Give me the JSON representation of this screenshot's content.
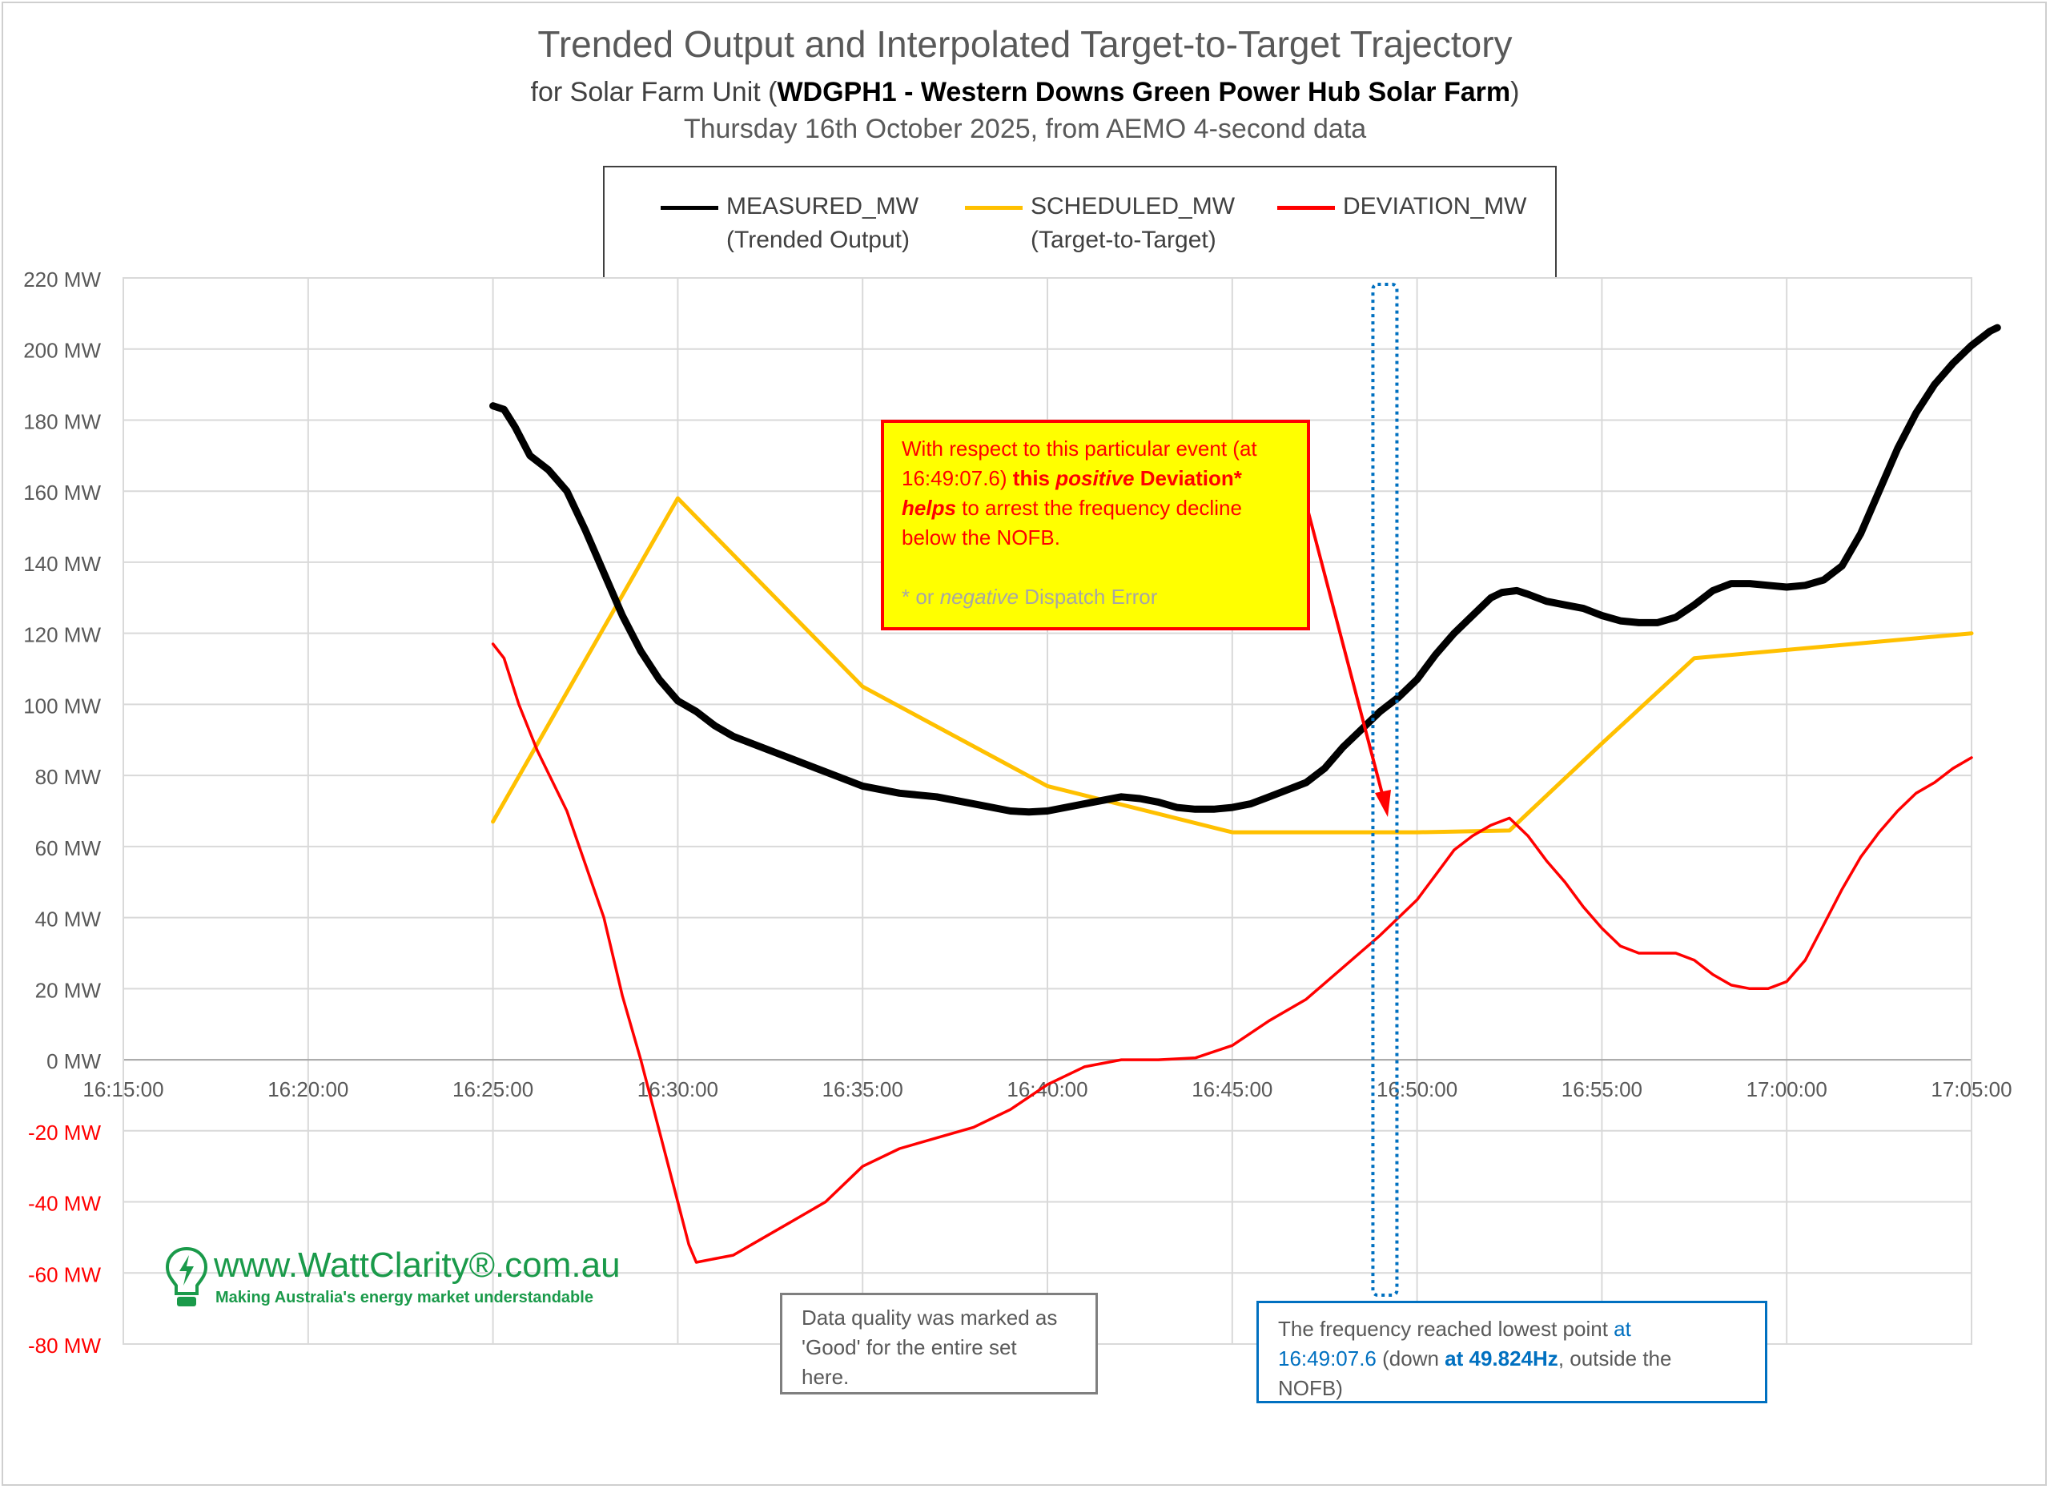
{
  "header": {
    "title": "Trended Output and Interpolated Target-to-Target Trajectory",
    "subtitle_prefix": "for Solar Farm Unit (",
    "subtitle_unit": "WDGPH1 - Western Downs Green Power Hub Solar Farm",
    "subtitle_suffix": ")",
    "date_line": "Thursday 16th October 2025, from AEMO 4-second data"
  },
  "legend": {
    "items": [
      {
        "name": "MEASURED_MW",
        "sub": "(Trended Output)",
        "color": "#000000"
      },
      {
        "name": "SCHEDULED_MW",
        "sub": "(Target-to-Target)",
        "color": "#ffc000"
      },
      {
        "name": "DEVIATION_MW",
        "sub": "",
        "color": "#ff0000"
      }
    ]
  },
  "annotations": {
    "yellow": {
      "l1": "With respect to this particular event (at",
      "l2a": "16:49:07.6) ",
      "l2b": "this ",
      "l2c": "positive",
      "l2d": " Deviation*",
      "l3a": "helps",
      "l3b": " to arrest the frequency decline",
      "l4": "below the NOFB.",
      "f1": "* or ",
      "f2": "negative",
      "f3": " Dispatch Error"
    },
    "grey": {
      "l1": "Data quality was marked as",
      "l2": "'Good' for the entire set",
      "l3": "here."
    },
    "blue": {
      "a1": "The frequency reached lowest point ",
      "a2": "at",
      "b1": "16:49:07.6",
      "b2": " (down ",
      "b3": "at 49.824Hz",
      "b4": ", outside the",
      "c1": "NOFB)"
    }
  },
  "logo": {
    "text": "www.WattClarity®.com.au",
    "tagline": "Making Australia's energy market understandable"
  },
  "chart_data": {
    "type": "line",
    "x_ticks": [
      "16:15:00",
      "16:20:00",
      "16:25:00",
      "16:30:00",
      "16:35:00",
      "16:40:00",
      "16:45:00",
      "16:50:00",
      "16:55:00",
      "17:00:00",
      "17:05:00"
    ],
    "y_ticks": [
      "220 MW",
      "200 MW",
      "180 MW",
      "160 MW",
      "140 MW",
      "120 MW",
      "100 MW",
      "80 MW",
      "60 MW",
      "40 MW",
      "20 MW",
      "0 MW",
      "-20 MW",
      "-40 MW",
      "-60 MW",
      "-80 MW"
    ],
    "xlim_minutes": [
      0,
      50
    ],
    "ylim": [
      -80,
      220
    ],
    "grid": true,
    "legend_position": "top",
    "event_marker_minute": 34.13,
    "series": [
      {
        "name": "MEASURED_MW",
        "color": "#000000",
        "points": [
          [
            10,
            184
          ],
          [
            10.3,
            183
          ],
          [
            10.6,
            178
          ],
          [
            11,
            170
          ],
          [
            11.5,
            166
          ],
          [
            12,
            160
          ],
          [
            12.5,
            149
          ],
          [
            13,
            137
          ],
          [
            13.5,
            125
          ],
          [
            14,
            115
          ],
          [
            14.5,
            107
          ],
          [
            15,
            101
          ],
          [
            15.5,
            98
          ],
          [
            16,
            94
          ],
          [
            16.5,
            91
          ],
          [
            17,
            89
          ],
          [
            18,
            85
          ],
          [
            19,
            81
          ],
          [
            20,
            77
          ],
          [
            21,
            75
          ],
          [
            22,
            74
          ],
          [
            23,
            72
          ],
          [
            24,
            70
          ],
          [
            24.5,
            69.7
          ],
          [
            25,
            70
          ],
          [
            26,
            72
          ],
          [
            27,
            74
          ],
          [
            27.5,
            73.5
          ],
          [
            28,
            72.5
          ],
          [
            28.5,
            71
          ],
          [
            29,
            70.5
          ],
          [
            29.5,
            70.5
          ],
          [
            30,
            71
          ],
          [
            30.5,
            72
          ],
          [
            31,
            74
          ],
          [
            31.5,
            76
          ],
          [
            32,
            78
          ],
          [
            32.5,
            82
          ],
          [
            33,
            88
          ],
          [
            33.5,
            93
          ],
          [
            34,
            98
          ],
          [
            34.5,
            102
          ],
          [
            35,
            107
          ],
          [
            35.5,
            114
          ],
          [
            36,
            120
          ],
          [
            36.5,
            125
          ],
          [
            37,
            130
          ],
          [
            37.3,
            131.5
          ],
          [
            37.7,
            132
          ],
          [
            38,
            131
          ],
          [
            38.5,
            129
          ],
          [
            39,
            128
          ],
          [
            39.5,
            127
          ],
          [
            40,
            125
          ],
          [
            40.5,
            123.5
          ],
          [
            41,
            123
          ],
          [
            41.5,
            123
          ],
          [
            42,
            124.5
          ],
          [
            42.5,
            128
          ],
          [
            43,
            132
          ],
          [
            43.5,
            134
          ],
          [
            44,
            134
          ],
          [
            44.5,
            133.5
          ],
          [
            45,
            133
          ],
          [
            45.5,
            133.5
          ],
          [
            46,
            135
          ],
          [
            46.5,
            139
          ],
          [
            47,
            148
          ],
          [
            47.5,
            160
          ],
          [
            48,
            172
          ],
          [
            48.5,
            182
          ],
          [
            49,
            190
          ],
          [
            49.5,
            196
          ],
          [
            50,
            201
          ],
          [
            50.5,
            205
          ],
          [
            50.7,
            206
          ]
        ]
      },
      {
        "name": "SCHEDULED_MW",
        "color": "#ffc000",
        "points": [
          [
            10,
            67
          ],
          [
            15,
            158
          ],
          [
            20,
            105
          ],
          [
            25,
            77
          ],
          [
            30,
            64
          ],
          [
            35,
            64
          ],
          [
            37.5,
            64.5
          ],
          [
            40,
            89
          ],
          [
            42.5,
            113
          ],
          [
            50,
            120
          ]
        ]
      },
      {
        "name": "DEVIATION_MW",
        "color": "#ff0000",
        "points": [
          [
            10,
            117
          ],
          [
            10.3,
            113
          ],
          [
            10.7,
            100
          ],
          [
            11.2,
            87
          ],
          [
            12,
            70
          ],
          [
            13,
            40
          ],
          [
            13.5,
            18
          ],
          [
            14,
            0
          ],
          [
            14.5,
            -20
          ],
          [
            15,
            -40
          ],
          [
            15.3,
            -52
          ],
          [
            15.5,
            -57
          ],
          [
            16,
            -56
          ],
          [
            16.5,
            -55
          ],
          [
            17,
            -52
          ],
          [
            18,
            -46
          ],
          [
            19,
            -40
          ],
          [
            20,
            -30
          ],
          [
            21,
            -25
          ],
          [
            22,
            -22
          ],
          [
            23,
            -19
          ],
          [
            24,
            -14
          ],
          [
            25,
            -7
          ],
          [
            26,
            -2
          ],
          [
            27,
            0
          ],
          [
            28,
            0
          ],
          [
            29,
            0.5
          ],
          [
            30,
            4
          ],
          [
            31,
            11
          ],
          [
            32,
            17
          ],
          [
            33,
            26
          ],
          [
            34,
            35
          ],
          [
            35,
            45
          ],
          [
            35.5,
            52
          ],
          [
            36,
            59
          ],
          [
            36.5,
            63
          ],
          [
            37,
            66
          ],
          [
            37.5,
            68
          ],
          [
            38,
            63
          ],
          [
            38.5,
            56
          ],
          [
            39,
            50
          ],
          [
            39.5,
            43
          ],
          [
            40,
            37
          ],
          [
            40.5,
            32
          ],
          [
            41,
            30
          ],
          [
            41.5,
            30
          ],
          [
            42,
            30
          ],
          [
            42.5,
            28
          ],
          [
            43,
            24
          ],
          [
            43.5,
            21
          ],
          [
            44,
            20
          ],
          [
            44.5,
            20
          ],
          [
            45,
            22
          ],
          [
            45.5,
            28
          ],
          [
            46,
            38
          ],
          [
            46.5,
            48
          ],
          [
            47,
            57
          ],
          [
            47.5,
            64
          ],
          [
            48,
            70
          ],
          [
            48.5,
            75
          ],
          [
            49,
            78
          ],
          [
            49.5,
            82
          ],
          [
            50,
            85
          ]
        ]
      }
    ]
  }
}
